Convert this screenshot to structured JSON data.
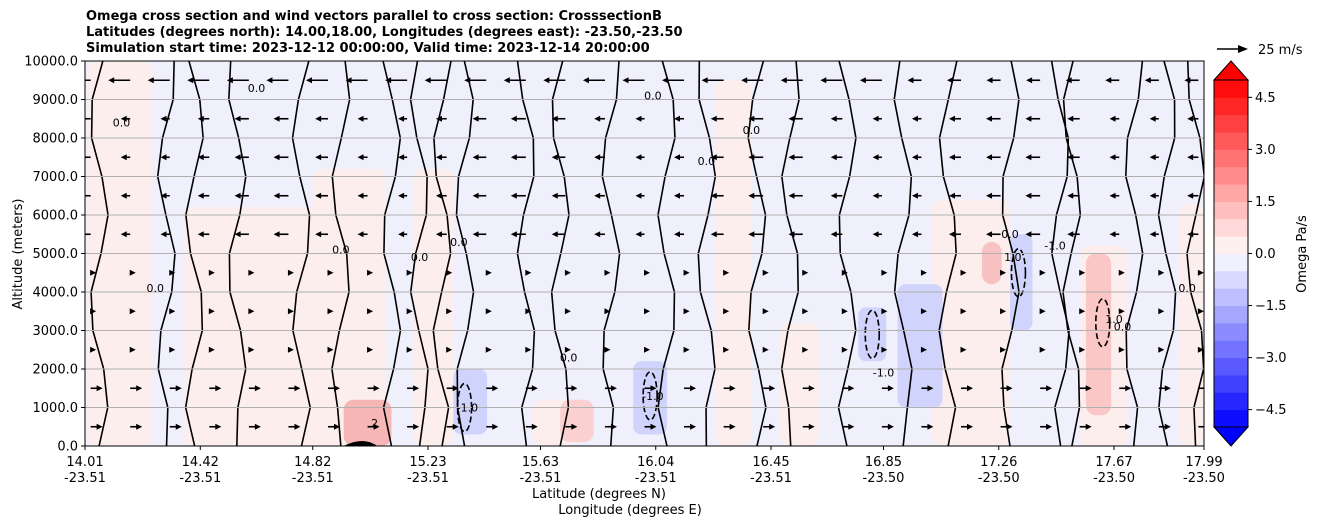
{
  "title": {
    "line1": "Omega cross section and wind vectors parallel to cross section: CrosssectionB",
    "line2": "Latitudes (degrees north): 14.00,18.00, Longitudes (degrees east): -23.50,-23.50",
    "line3": "Simulation start time: 2023-12-12 00:00:00, Valid time: 2023-12-14 20:00:00"
  },
  "chart_data": {
    "type": "heatmap",
    "title": "Omega cross section and wind vectors parallel to cross section: CrosssectionB",
    "ylabel": "Altitude (meters)",
    "xlabel_line1": "Latitude (degrees N)",
    "xlabel_line2": "Longitude (degrees E)",
    "ylim": [
      0,
      10000
    ],
    "yticks": [
      "0.0",
      "1000.0",
      "2000.0",
      "3000.0",
      "4000.0",
      "5000.0",
      "6000.0",
      "7000.0",
      "8000.0",
      "9000.0",
      "10000.0"
    ],
    "yvals": [
      0,
      1000,
      2000,
      3000,
      4000,
      5000,
      6000,
      7000,
      8000,
      9000,
      10000
    ],
    "xticks": [
      {
        "lat": "14.01",
        "lon": "-23.51"
      },
      {
        "lat": "14.42",
        "lon": "-23.51"
      },
      {
        "lat": "14.82",
        "lon": "-23.51"
      },
      {
        "lat": "15.23",
        "lon": "-23.51"
      },
      {
        "lat": "15.63",
        "lon": "-23.51"
      },
      {
        "lat": "16.04",
        "lon": "-23.51"
      },
      {
        "lat": "16.45",
        "lon": "-23.51"
      },
      {
        "lat": "16.85",
        "lon": "-23.50"
      },
      {
        "lat": "17.26",
        "lon": "-23.50"
      },
      {
        "lat": "17.67",
        "lon": "-23.50"
      },
      {
        "lat": "17.99",
        "lon": "-23.50"
      }
    ],
    "xlim": [
      14.01,
      17.99
    ],
    "grid": "horizontal",
    "colorbar": {
      "label": "Omega Pa/s",
      "ticks": [
        "−4.5",
        "−3.0",
        "−1.5",
        "0.0",
        "1.5",
        "3.0",
        "4.5"
      ],
      "tickvals": [
        -4.5,
        -3.0,
        -1.5,
        0.0,
        1.5,
        3.0,
        4.5
      ],
      "range": [
        -5,
        5
      ],
      "colormap": "bwr",
      "extend": "both"
    },
    "contour_labels": [
      "0.0",
      "-1.0",
      "1.0",
      "2"
    ],
    "vector_key": "25 m/s",
    "positive_regions": [
      {
        "x0": 14.02,
        "x1": 14.25,
        "y0": 0,
        "y1": 10000
      },
      {
        "x0": 14.36,
        "x1": 14.92,
        "y0": 0,
        "y1": 6200
      },
      {
        "x0": 14.82,
        "x1": 15.08,
        "y0": 0,
        "y1": 7200
      },
      {
        "x0": 15.18,
        "x1": 15.32,
        "y0": 0,
        "y1": 7200
      },
      {
        "x0": 15.6,
        "x1": 15.75,
        "y0": 0,
        "y1": 1200
      },
      {
        "x0": 16.25,
        "x1": 16.38,
        "y0": 0,
        "y1": 9500
      },
      {
        "x0": 16.48,
        "x1": 16.62,
        "y0": 0,
        "y1": 3200
      },
      {
        "x0": 17.02,
        "x1": 17.3,
        "y0": 0,
        "y1": 6400
      },
      {
        "x0": 17.55,
        "x1": 17.72,
        "y0": 0,
        "y1": 5200
      },
      {
        "x0": 17.9,
        "x1": 17.99,
        "y0": 0,
        "y1": 6300
      }
    ],
    "negative_regions": [
      {
        "x0": 15.32,
        "x1": 15.44,
        "y0": 300,
        "y1": 2000
      },
      {
        "x0": 15.96,
        "x1": 16.08,
        "y0": 300,
        "y1": 2200
      },
      {
        "x0": 16.76,
        "x1": 16.86,
        "y0": 2200,
        "y1": 3600
      },
      {
        "x0": 16.9,
        "x1": 17.06,
        "y0": 1000,
        "y1": 4200
      },
      {
        "x0": 17.3,
        "x1": 17.38,
        "y0": 3000,
        "y1": 5500
      }
    ]
  }
}
